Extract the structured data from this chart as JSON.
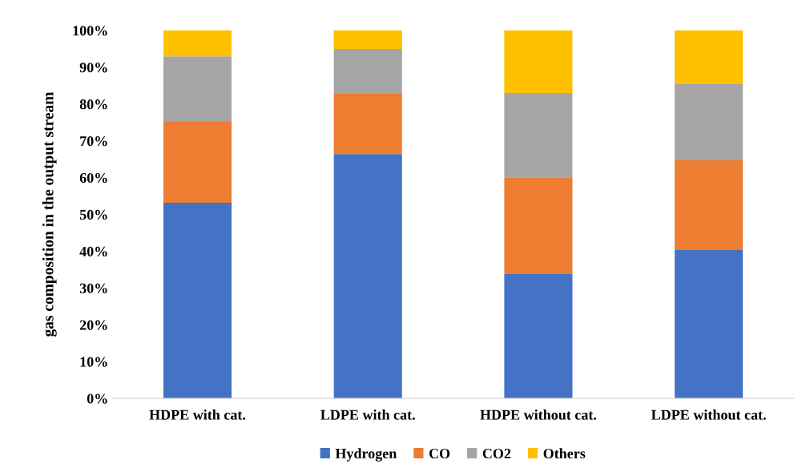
{
  "chart_data": {
    "type": "bar",
    "stacked": true,
    "ylabel": "gas composition in the output stream",
    "categories": [
      "HDPE with cat.",
      "LDPE with cat.",
      "HDPE without cat.",
      "LDPE without cat."
    ],
    "series": [
      {
        "name": "Hydrogen",
        "color": "#4472c4",
        "values": [
          53.2,
          66.4,
          33.8,
          40.5
        ]
      },
      {
        "name": "CO",
        "color": "#ed7d31",
        "values": [
          22.0,
          16.4,
          26.3,
          24.2
        ]
      },
      {
        "name": "CO2",
        "color": "#a5a5a5",
        "values": [
          17.8,
          12.2,
          22.9,
          20.7
        ]
      },
      {
        "name": "Others",
        "color": "#ffc000",
        "values": [
          7.0,
          5.0,
          17.0,
          14.6
        ]
      }
    ],
    "ylim": [
      0,
      100
    ],
    "yticks": [
      {
        "value": 0,
        "label": "0%"
      },
      {
        "value": 10,
        "label": "10%"
      },
      {
        "value": 20,
        "label": "20%"
      },
      {
        "value": 30,
        "label": "30%"
      },
      {
        "value": 40,
        "label": "40%"
      },
      {
        "value": 50,
        "label": "50%"
      },
      {
        "value": 60,
        "label": "60%"
      },
      {
        "value": 70,
        "label": "70%"
      },
      {
        "value": 80,
        "label": "80%"
      },
      {
        "value": 90,
        "label": "90%"
      },
      {
        "value": 100,
        "label": "100%"
      }
    ],
    "grid": false,
    "legend": "bottom"
  }
}
